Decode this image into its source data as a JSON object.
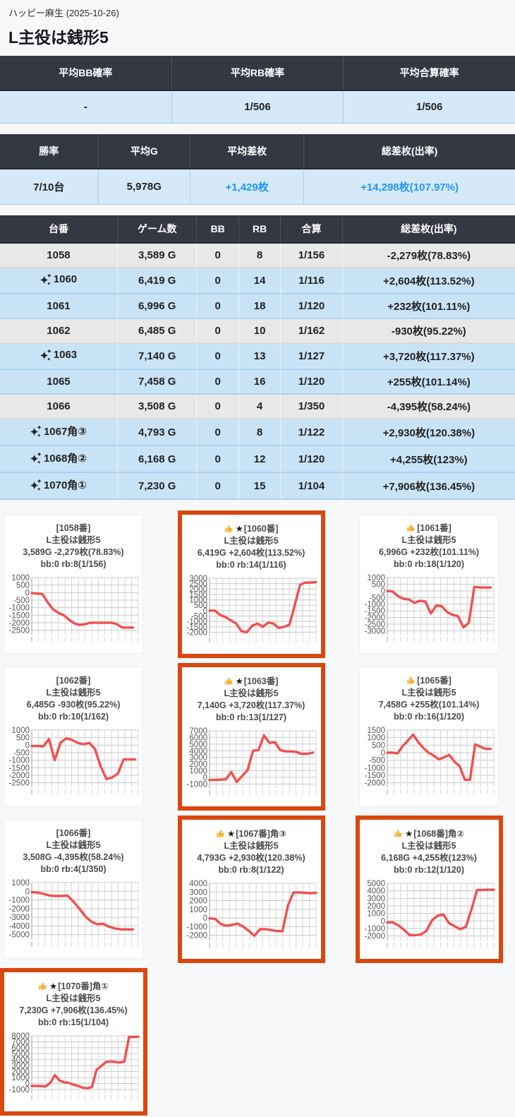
{
  "header": {
    "hall": "ハッピー麻生 (2025-10-26)",
    "title": "L主役は銭形5"
  },
  "summary_probability": {
    "headers": [
      "平均BB確率",
      "平均RB確率",
      "平均合算確率"
    ],
    "values": [
      "-",
      "1/506",
      "1/506"
    ]
  },
  "summary_stats": {
    "headers": [
      "勝率",
      "平均G",
      "平均差枚",
      "総差枚(出率)"
    ],
    "values": [
      {
        "text": "7/10台",
        "highlight": false
      },
      {
        "text": "5,978G",
        "highlight": false
      },
      {
        "text": "+1,429枚",
        "highlight": true
      },
      {
        "text": "+14,298枚(107.97%)",
        "highlight": true
      }
    ]
  },
  "machine_table": {
    "headers": [
      "台番",
      "ゲーム数",
      "BB",
      "RB",
      "合算",
      "総差枚(出率)"
    ],
    "rows": [
      {
        "sparkle": false,
        "unit": "1058",
        "games": "3,589 G",
        "bb": "0",
        "rb": "8",
        "gassan": "1/156",
        "diff": "-2,279枚(78.83%)",
        "tone": "gray"
      },
      {
        "sparkle": true,
        "unit": "1060",
        "games": "6,419 G",
        "bb": "0",
        "rb": "14",
        "gassan": "1/116",
        "diff": "+2,604枚(113.52%)",
        "tone": "blue"
      },
      {
        "sparkle": false,
        "unit": "1061",
        "games": "6,996 G",
        "bb": "0",
        "rb": "18",
        "gassan": "1/120",
        "diff": "+232枚(101.11%)",
        "tone": "blue"
      },
      {
        "sparkle": false,
        "unit": "1062",
        "games": "6,485 G",
        "bb": "0",
        "rb": "10",
        "gassan": "1/162",
        "diff": "-930枚(95.22%)",
        "tone": "gray"
      },
      {
        "sparkle": true,
        "unit": "1063",
        "games": "7,140 G",
        "bb": "0",
        "rb": "13",
        "gassan": "1/127",
        "diff": "+3,720枚(117.37%)",
        "tone": "blue"
      },
      {
        "sparkle": false,
        "unit": "1065",
        "games": "7,458 G",
        "bb": "0",
        "rb": "16",
        "gassan": "1/120",
        "diff": "+255枚(101.14%)",
        "tone": "blue"
      },
      {
        "sparkle": false,
        "unit": "1066",
        "games": "3,508 G",
        "bb": "0",
        "rb": "4",
        "gassan": "1/350",
        "diff": "-4,395枚(58.24%)",
        "tone": "gray"
      },
      {
        "sparkle": true,
        "unit": "1067角③",
        "games": "4,793 G",
        "bb": "0",
        "rb": "8",
        "gassan": "1/122",
        "diff": "+2,930枚(120.38%)",
        "tone": "blue"
      },
      {
        "sparkle": true,
        "unit": "1068角②",
        "games": "6,168 G",
        "bb": "0",
        "rb": "12",
        "gassan": "1/120",
        "diff": "+4,255枚(123%)",
        "tone": "blue"
      },
      {
        "sparkle": true,
        "unit": "1070角①",
        "games": "7,230 G",
        "bb": "0",
        "rb": "15",
        "gassan": "1/104",
        "diff": "+7,906枚(136.45%)",
        "tone": "blue"
      }
    ]
  },
  "charts": [
    {
      "unit": "1058",
      "thumb": false,
      "star": false,
      "bordered": false,
      "label": "[1058番]",
      "machine": "L主役は銭形5",
      "stats": "3,589G -2,279枚(78.83%)",
      "bonus": "bb:0 rb:8(1/156)",
      "span": 0.95,
      "yticks": [
        1000,
        500,
        0,
        -500,
        -1000,
        -1500,
        -2000,
        -2500
      ],
      "values": [
        -30,
        -60,
        -100,
        -650,
        -1100,
        -1350,
        -1500,
        -1800,
        -2050,
        -2150,
        -2100,
        -2000,
        -2000,
        -2000,
        -2000,
        -2000,
        -2100,
        -2320,
        -2320,
        -2320
      ]
    },
    {
      "unit": "1060",
      "thumb": true,
      "star": true,
      "bordered": true,
      "label": "[1060番]",
      "machine": "L主役は銭形5",
      "stats": "6,419G +2,604枚(113.52%)",
      "bonus": "bb:0 rb:14(1/116)",
      "span": 1.0,
      "yticks": [
        3000,
        2500,
        2000,
        1500,
        1000,
        500,
        0,
        -500,
        -1000,
        -1500,
        -2000
      ],
      "values": [
        0,
        0,
        -400,
        -600,
        -900,
        -1200,
        -1900,
        -2000,
        -1400,
        -1200,
        -1500,
        -1100,
        -1200,
        -1600,
        -1500,
        -1300,
        500,
        2400,
        2600,
        2600,
        2650
      ]
    },
    {
      "unit": "1061",
      "thumb": true,
      "star": false,
      "bordered": false,
      "label": "[1061番]",
      "machine": "L主役は銭形5",
      "stats": "6,996G +232枚(101.11%)",
      "bonus": "bb:0 rb:18(1/120)",
      "span": 0.97,
      "yticks": [
        1000,
        500,
        0,
        -500,
        -1000,
        -1500,
        -2000,
        -2500,
        -3000
      ],
      "values": [
        0,
        -50,
        -400,
        -600,
        -650,
        -900,
        -750,
        -800,
        -1700,
        -1100,
        -1150,
        -1600,
        -1800,
        -1900,
        -2750,
        -2400,
        300,
        250,
        250,
        250
      ]
    },
    {
      "unit": "1062",
      "thumb": false,
      "star": false,
      "bordered": false,
      "label": "[1062番]",
      "machine": "L主役は銭形5",
      "stats": "6,485G -930枚(95.22%)",
      "bonus": "bb:0 rb:10(1/162)",
      "span": 0.97,
      "yticks": [
        1000,
        500,
        0,
        -500,
        -1000,
        -1500,
        -2000,
        -2500
      ],
      "values": [
        -50,
        -60,
        -80,
        400,
        -1000,
        150,
        450,
        350,
        150,
        60,
        150,
        -250,
        -1400,
        -2250,
        -2150,
        -1900,
        -950,
        -950,
        -950
      ]
    },
    {
      "unit": "1063",
      "thumb": true,
      "star": true,
      "bordered": true,
      "label": "[1063番]",
      "machine": "L主役は銭形5",
      "stats": "7,140G +3,720枚(117.37%)",
      "bonus": "bb:0 rb:13(1/127)",
      "span": 0.97,
      "yticks": [
        7000,
        6000,
        5000,
        4000,
        3000,
        2000,
        1000,
        0,
        -1000
      ],
      "values": [
        -400,
        -400,
        -350,
        -300,
        800,
        -700,
        200,
        1100,
        4000,
        4100,
        6300,
        5200,
        5300,
        4100,
        3900,
        3900,
        3800,
        3500,
        3550,
        3700
      ]
    },
    {
      "unit": "1065",
      "thumb": true,
      "star": false,
      "bordered": false,
      "label": "[1065番]",
      "machine": "L主役は銭形5",
      "stats": "7,458G +255枚(101.14%)",
      "bonus": "bb:0 rb:16(1/120)",
      "span": 0.97,
      "yticks": [
        1500,
        1000,
        500,
        0,
        -500,
        -1000,
        -1500,
        -2000
      ],
      "values": [
        0,
        0,
        -50,
        450,
        800,
        1200,
        700,
        300,
        0,
        -200,
        -450,
        -300,
        -150,
        -600,
        -900,
        -1800,
        -1800,
        550,
        400,
        250,
        250
      ]
    },
    {
      "unit": "1066",
      "thumb": false,
      "star": false,
      "bordered": false,
      "label": "[1066番]",
      "machine": "L主役は銭形5",
      "stats": "3,508G -4,395枚(58.24%)",
      "bonus": "bb:0 rb:4(1/350)",
      "span": 0.95,
      "yticks": [
        1000,
        0,
        -1000,
        -2000,
        -3000,
        -4000,
        -5000
      ],
      "values": [
        -100,
        -150,
        -300,
        -500,
        -550,
        -550,
        -500,
        -1200,
        -2000,
        -2900,
        -3500,
        -3800,
        -3750,
        -4100,
        -4300,
        -4400,
        -4400,
        -4400
      ]
    },
    {
      "unit": "1067",
      "thumb": true,
      "star": true,
      "bordered": true,
      "label": "[1067番]角③",
      "machine": "L主役は銭形5",
      "stats": "4,793G +2,930枚(120.38%)",
      "bonus": "bb:0 rb:8(1/122)",
      "span": 1.0,
      "yticks": [
        4000,
        3000,
        2000,
        1000,
        0,
        -1000,
        -2000
      ],
      "values": [
        -50,
        -100,
        -700,
        -900,
        -800,
        -650,
        -1000,
        -1500,
        -2050,
        -1300,
        -1300,
        -1400,
        -1500,
        -1550,
        1500,
        2950,
        2950,
        2900,
        2850,
        2900
      ]
    },
    {
      "unit": "1068",
      "thumb": true,
      "star": true,
      "bordered": true,
      "label": "[1068番]角②",
      "machine": "L主役は銭形5",
      "stats": "6,168G +4,255枚(123%)",
      "bonus": "bb:0 rb:12(1/120)",
      "span": 1.0,
      "yticks": [
        5000,
        4000,
        3000,
        2000,
        1000,
        0,
        -1000,
        -2000
      ],
      "values": [
        -200,
        -200,
        -600,
        -1200,
        -1900,
        -1900,
        -1800,
        -1300,
        100,
        700,
        850,
        -300,
        -700,
        -1100,
        -800,
        1500,
        4100,
        4100,
        4150,
        4150
      ]
    },
    {
      "unit": "1070",
      "thumb": true,
      "star": true,
      "bordered": true,
      "label": "[1070番]角①",
      "machine": "L主役は銭形5",
      "stats": "7,230G +7,906枚(136.45%)",
      "bonus": "bb:0 rb:15(1/104)",
      "span": 1.0,
      "yticks": [
        8000,
        7000,
        6000,
        5000,
        4000,
        3000,
        2000,
        1000,
        0,
        -1000
      ],
      "values": [
        -400,
        -400,
        -450,
        -500,
        100,
        1400,
        500,
        200,
        100,
        -200,
        -400,
        -700,
        -800,
        -600,
        2300,
        2900,
        3600,
        3700,
        3600,
        3500,
        3700,
        7800,
        7800,
        7850
      ]
    }
  ],
  "colors": {
    "header_bg": "#343843",
    "row_blue": "#c9e3f6",
    "row_gray": "#e8e8e8",
    "summary_value_bg": "#d5e9f9",
    "highlight_text": "#2196f3",
    "highlight_border": "#d9480f",
    "line": "#f0504f"
  }
}
